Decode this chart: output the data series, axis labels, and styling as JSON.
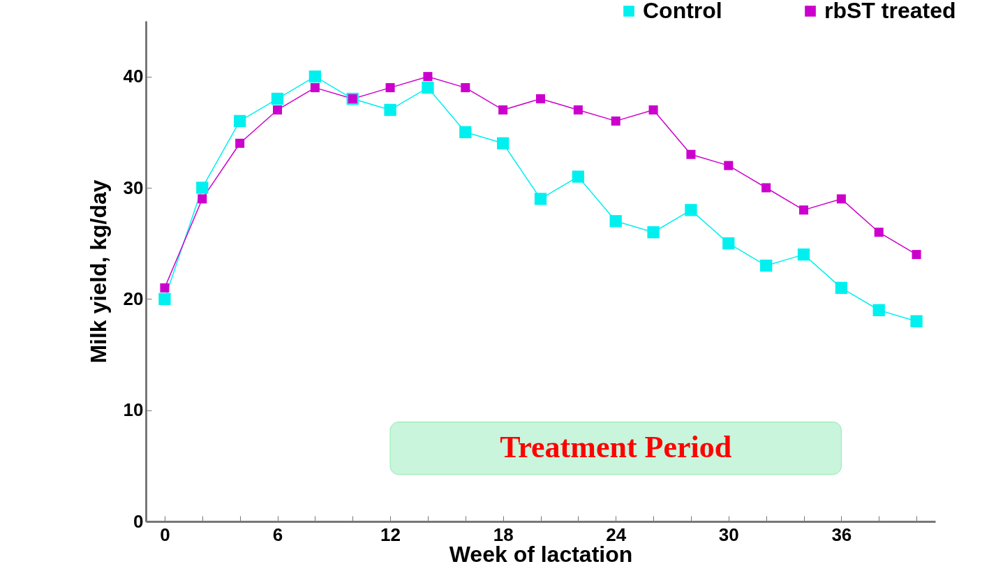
{
  "chart_data": {
    "type": "line",
    "xlabel": "Week of lactation",
    "ylabel": "Milk yield, kg/day",
    "x": [
      0,
      2,
      4,
      6,
      8,
      10,
      12,
      14,
      16,
      18,
      20,
      22,
      24,
      26,
      28,
      30,
      32,
      34,
      36,
      38,
      40
    ],
    "series": [
      {
        "name": "Control",
        "color": "#00f0f0",
        "values": [
          20,
          30,
          36,
          38,
          40,
          38,
          37,
          39,
          35,
          34,
          29,
          31,
          27,
          26,
          28,
          25,
          23,
          24,
          21,
          19,
          18
        ]
      },
      {
        "name": "rbST treated",
        "color": "#cc00cc",
        "values": [
          21,
          29,
          34,
          37,
          39,
          38,
          39,
          40,
          39,
          37,
          38,
          37,
          36,
          37,
          33,
          32,
          30,
          28,
          29,
          26,
          24
        ]
      }
    ],
    "xlim": [
      -1,
      41
    ],
    "ylim": [
      0,
      45
    ],
    "xticks": [
      0,
      {
        "value": 2,
        "label": null
      },
      {
        "value": 4,
        "label": null
      },
      6,
      {
        "value": 8,
        "label": null
      },
      {
        "value": 10,
        "label": null
      },
      12,
      {
        "value": 14,
        "label": null
      },
      {
        "value": 16,
        "label": null
      },
      18,
      {
        "value": 20,
        "label": null
      },
      {
        "value": 22,
        "label": null
      },
      24,
      {
        "value": 26,
        "label": null
      },
      {
        "value": 28,
        "label": null
      },
      30,
      {
        "value": 32,
        "label": null
      },
      {
        "value": 34,
        "label": null
      },
      36,
      {
        "value": 38,
        "label": null
      },
      {
        "value": 40,
        "label": null
      }
    ],
    "yticks": [
      0,
      10,
      20,
      30,
      40
    ],
    "bands": [
      {
        "axis": "x",
        "from": 12,
        "to": 36,
        "label": "Treatment Period",
        "color": "#c8f5dc"
      }
    ],
    "grid": false,
    "legend": "top right",
    "marker": "square",
    "line_style": "solid"
  }
}
